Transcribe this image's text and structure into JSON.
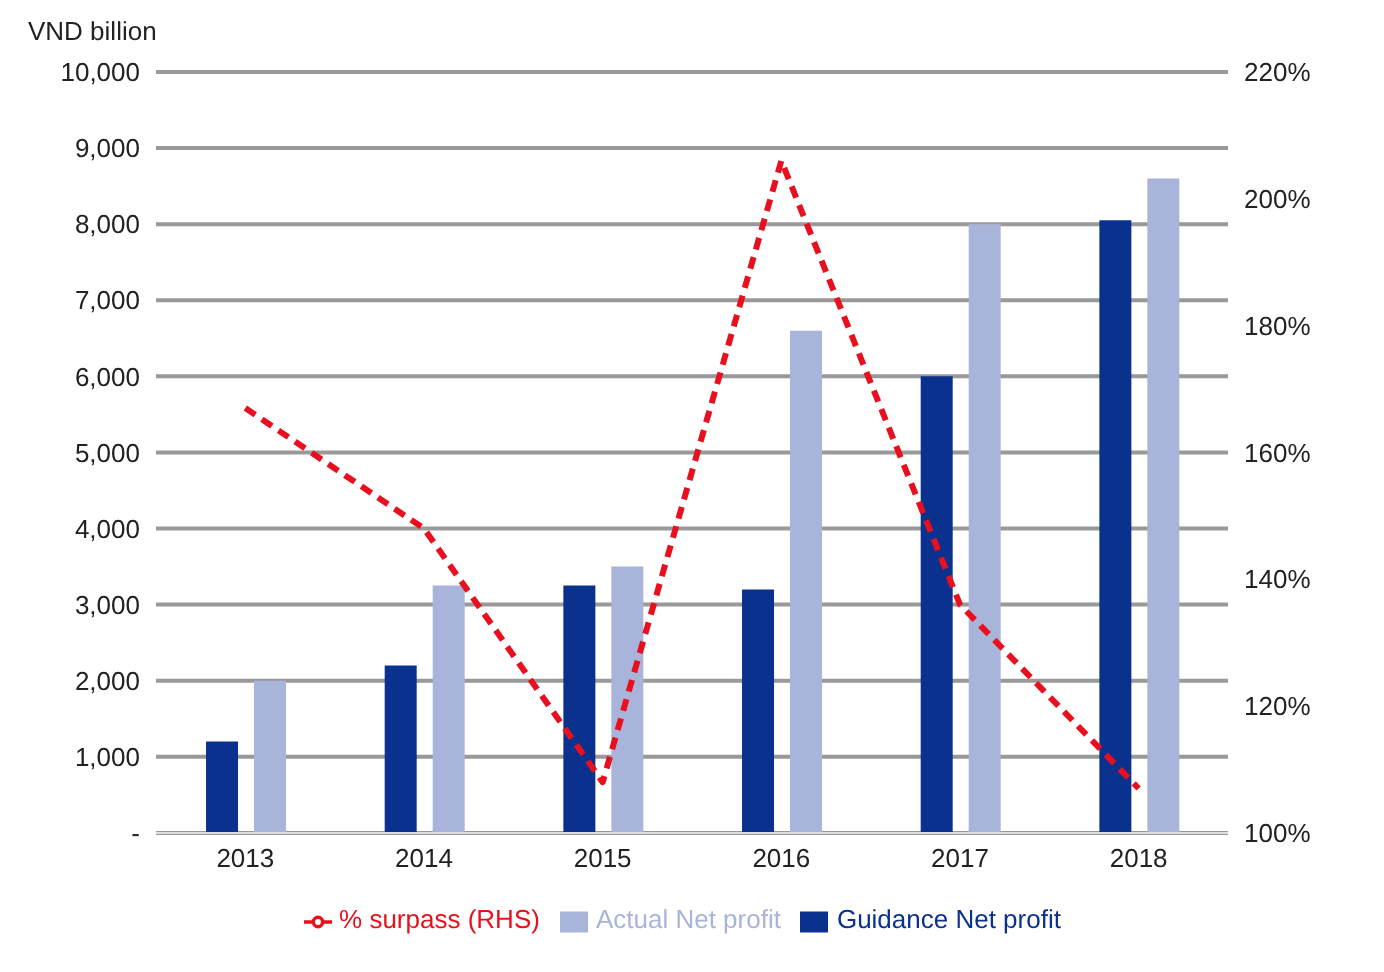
{
  "chart_data": {
    "type": "bar",
    "ylabel": "VND billion",
    "categories": [
      "2013",
      "2014",
      "2015",
      "2016",
      "2017",
      "2018"
    ],
    "series": [
      {
        "name": "Guidance Net profit",
        "color": "#0b318f",
        "values": [
          1200,
          2200,
          3250,
          3200,
          6000,
          8050
        ]
      },
      {
        "name": "Actual Net profit",
        "color": "#a8b4d9",
        "values": [
          2000,
          3250,
          3500,
          6600,
          8000,
          8600
        ]
      },
      {
        "name": "% surpass (RHS)",
        "type": "line",
        "axis": "y2",
        "color": "#e8101e",
        "line_style": "dashed",
        "marker": "none",
        "values": [
          167,
          148,
          108,
          206,
          136,
          107
        ]
      }
    ],
    "ylim": [
      0,
      10000
    ],
    "yticks": [
      {
        "value": 0,
        "label": "-"
      },
      {
        "value": 1000,
        "label": "1,000"
      },
      {
        "value": 2000,
        "label": "2,000"
      },
      {
        "value": 3000,
        "label": "3,000"
      },
      {
        "value": 4000,
        "label": "4,000"
      },
      {
        "value": 5000,
        "label": "5,000"
      },
      {
        "value": 6000,
        "label": "6,000"
      },
      {
        "value": 7000,
        "label": "7,000"
      },
      {
        "value": 8000,
        "label": "8,000"
      },
      {
        "value": 9000,
        "label": "9,000"
      },
      {
        "value": 10000,
        "label": "10,000"
      }
    ],
    "y2lim": [
      100,
      220
    ],
    "y2ticks": [
      {
        "value": 100,
        "label": "100%"
      },
      {
        "value": 120,
        "label": "120%"
      },
      {
        "value": 140,
        "label": "140%"
      },
      {
        "value": 160,
        "label": "160%"
      },
      {
        "value": 180,
        "label": "180%"
      },
      {
        "value": 200,
        "label": "200%"
      },
      {
        "value": 220,
        "label": "220%"
      }
    ],
    "grid": "y",
    "legend": "bottom"
  }
}
